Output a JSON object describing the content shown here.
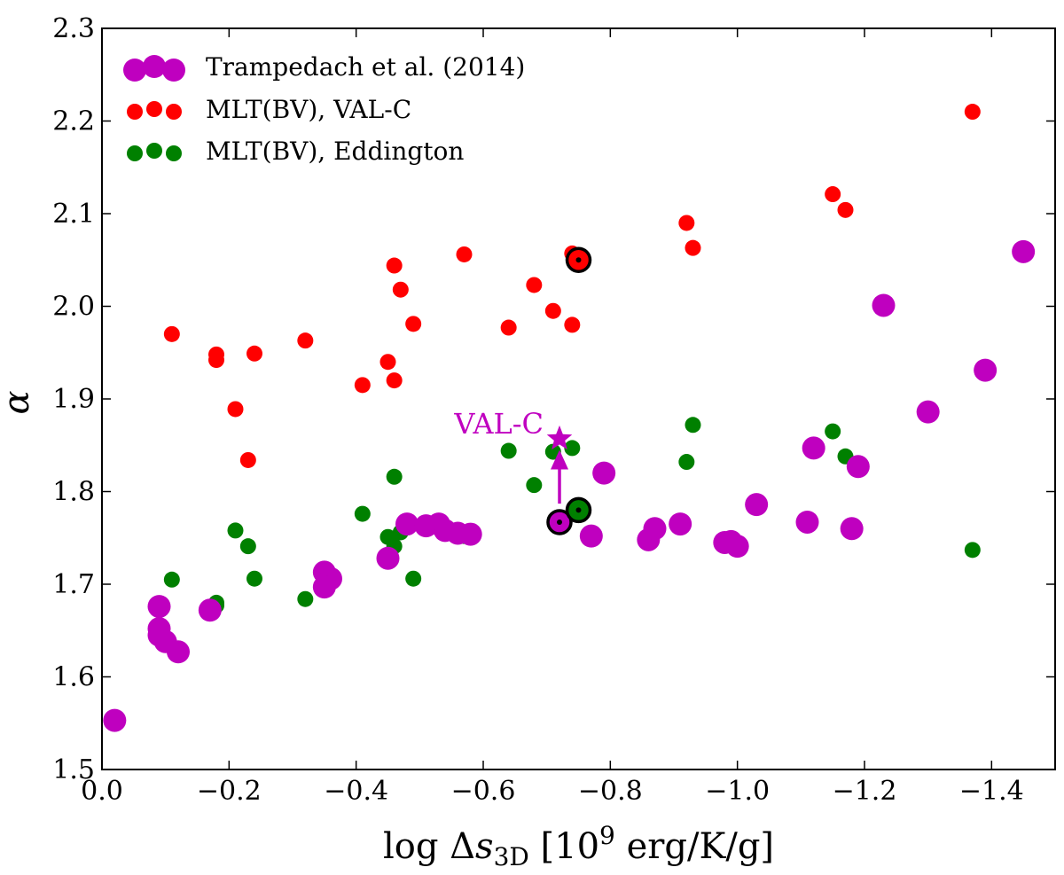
{
  "chart_data": {
    "type": "scatter",
    "title": "",
    "xlabel": {
      "prefix": "log Δ",
      "var": "s",
      "subscript": "3D",
      "units_prefix": " [10",
      "exponent": "9",
      "units_suffix": "  erg/K/g]"
    },
    "ylabel": "α",
    "xlim": [
      0.0,
      -1.5
    ],
    "ylim": [
      1.5,
      2.3
    ],
    "x_ticks": [
      0.0,
      -0.2,
      -0.4,
      -0.6,
      -0.8,
      -1.0,
      -1.2,
      -1.4
    ],
    "x_tick_labels": [
      "0.0",
      "−0.2",
      "−0.4",
      "−0.6",
      "−0.8",
      "−1.0",
      "−1.2",
      "−1.4"
    ],
    "y_ticks": [
      1.5,
      1.6,
      1.7,
      1.8,
      1.9,
      2.0,
      2.1,
      2.2,
      2.3
    ],
    "y_tick_labels": [
      "1.5",
      "1.6",
      "1.7",
      "1.8",
      "1.9",
      "2.0",
      "2.1",
      "2.2",
      "2.3"
    ],
    "grid": false,
    "legend_position": "top-left",
    "series": [
      {
        "name": "Trampedach et al. (2014)",
        "color": "#bf00bf",
        "marker": "large-circle",
        "points": [
          [
            -0.02,
            1.553
          ],
          [
            -0.09,
            1.676
          ],
          [
            -0.09,
            1.652
          ],
          [
            -0.09,
            1.645
          ],
          [
            -0.1,
            1.638
          ],
          [
            -0.12,
            1.627
          ],
          [
            -0.17,
            1.672
          ],
          [
            -0.35,
            1.713
          ],
          [
            -0.36,
            1.706
          ],
          [
            -0.35,
            1.697
          ],
          [
            -0.45,
            1.728
          ],
          [
            -0.48,
            1.765
          ],
          [
            -0.51,
            1.763
          ],
          [
            -0.53,
            1.765
          ],
          [
            -0.54,
            1.758
          ],
          [
            -0.56,
            1.755
          ],
          [
            -0.58,
            1.754
          ],
          [
            -0.72,
            1.767
          ],
          [
            -0.77,
            1.752
          ],
          [
            -0.79,
            1.82
          ],
          [
            -0.86,
            1.748
          ],
          [
            -0.87,
            1.76
          ],
          [
            -0.91,
            1.765
          ],
          [
            -0.98,
            1.745
          ],
          [
            -0.99,
            1.746
          ],
          [
            -1.0,
            1.741
          ],
          [
            -1.03,
            1.786
          ],
          [
            -1.11,
            1.767
          ],
          [
            -1.12,
            1.847
          ],
          [
            -1.18,
            1.76
          ],
          [
            -1.19,
            1.827
          ],
          [
            -1.23,
            2.001
          ],
          [
            -1.3,
            1.886
          ],
          [
            -1.39,
            1.931
          ],
          [
            -1.45,
            2.059
          ]
        ]
      },
      {
        "name": "MLT(BV), VAL-C",
        "color": "#ff0000",
        "marker": "circle",
        "points": [
          [
            -0.11,
            1.97
          ],
          [
            -0.18,
            1.948
          ],
          [
            -0.18,
            1.942
          ],
          [
            -0.21,
            1.889
          ],
          [
            -0.23,
            1.834
          ],
          [
            -0.24,
            1.949
          ],
          [
            -0.32,
            1.963
          ],
          [
            -0.41,
            1.915
          ],
          [
            -0.45,
            1.94
          ],
          [
            -0.46,
            2.044
          ],
          [
            -0.46,
            1.92
          ],
          [
            -0.47,
            2.018
          ],
          [
            -0.49,
            1.981
          ],
          [
            -0.57,
            2.056
          ],
          [
            -0.64,
            1.977
          ],
          [
            -0.68,
            2.023
          ],
          [
            -0.71,
            1.995
          ],
          [
            -0.74,
            2.057
          ],
          [
            -0.74,
            1.98
          ],
          [
            -0.75,
            2.05
          ],
          [
            -0.92,
            2.09
          ],
          [
            -0.93,
            2.063
          ],
          [
            -1.15,
            2.121
          ],
          [
            -1.17,
            2.104
          ],
          [
            -1.37,
            2.21
          ]
        ]
      },
      {
        "name": "MLT(BV), Eddington",
        "color": "#008000",
        "marker": "circle",
        "points": [
          [
            -0.11,
            1.705
          ],
          [
            -0.18,
            1.68
          ],
          [
            -0.18,
            1.677
          ],
          [
            -0.21,
            1.758
          ],
          [
            -0.23,
            1.741
          ],
          [
            -0.24,
            1.706
          ],
          [
            -0.32,
            1.684
          ],
          [
            -0.41,
            1.776
          ],
          [
            -0.45,
            1.751
          ],
          [
            -0.46,
            1.741
          ],
          [
            -0.46,
            1.816
          ],
          [
            -0.47,
            1.756
          ],
          [
            -0.49,
            1.706
          ],
          [
            -0.57,
            1.752
          ],
          [
            -0.64,
            1.844
          ],
          [
            -0.68,
            1.807
          ],
          [
            -0.71,
            1.843
          ],
          [
            -0.74,
            1.847
          ],
          [
            -0.75,
            1.78
          ],
          [
            -0.92,
            1.832
          ],
          [
            -0.93,
            1.872
          ],
          [
            -1.15,
            1.865
          ],
          [
            -1.17,
            1.838
          ],
          [
            -1.37,
            1.737
          ]
        ]
      }
    ],
    "highlighted_points": [
      {
        "series": "Trampedach et al. (2014)",
        "x": -0.72,
        "y": 1.767,
        "symbol": "sun"
      },
      {
        "series": "MLT(BV), VAL-C",
        "x": -0.75,
        "y": 2.05,
        "symbol": "sun"
      },
      {
        "series": "MLT(BV), Eddington",
        "x": -0.75,
        "y": 1.78,
        "symbol": "sun"
      }
    ],
    "annotations": [
      {
        "text": "VAL-C",
        "color": "#bf00bf",
        "arrow_from": [
          -0.72,
          1.787
        ],
        "arrow_to": [
          -0.72,
          1.845
        ],
        "star": [
          -0.72,
          1.857
        ]
      }
    ]
  }
}
